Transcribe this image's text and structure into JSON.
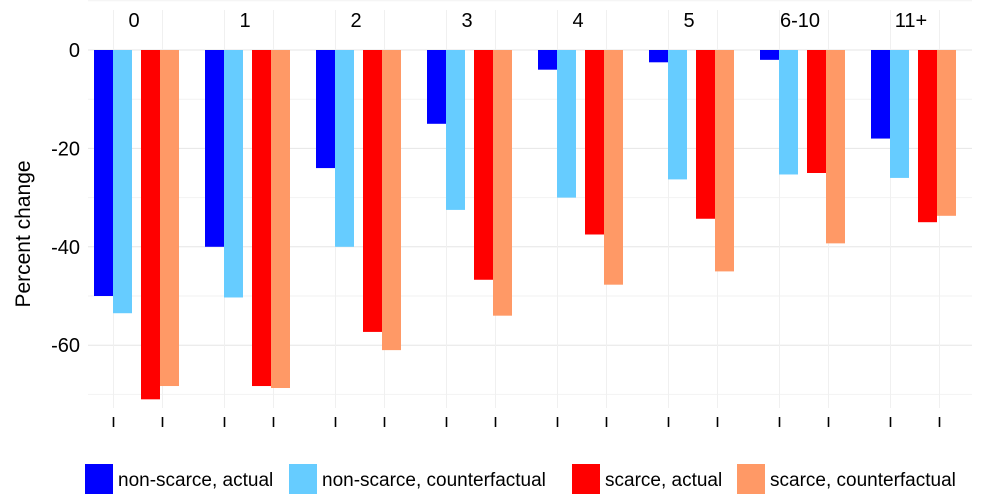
{
  "chart_data": {
    "type": "bar",
    "title": "",
    "xlabel": "",
    "ylabel": "Percent change",
    "ylim": [
      -70,
      0
    ],
    "yticks": [
      0,
      -20,
      -40,
      -60
    ],
    "grid": true,
    "legend_position": "bottom",
    "categories": [
      "0",
      "1",
      "2",
      "3",
      "4",
      "5",
      "6-10",
      "11+"
    ],
    "series": [
      {
        "name": "non-scarce, actual",
        "color": "#0000FF",
        "values": [
          -50,
          -40,
          -24,
          -15,
          -4,
          -2.5,
          -2,
          -18
        ]
      },
      {
        "name": "non-scarce, counterfactual",
        "color": "#66CCFF",
        "values": [
          -53.5,
          -50.3,
          -40,
          -32.5,
          -30,
          -26.3,
          -25.3,
          -26
        ]
      },
      {
        "name": "scarce, actual",
        "color": "#FF0000",
        "values": [
          -71,
          -68.3,
          -57.3,
          -46.7,
          -37.5,
          -34.3,
          -25,
          -35
        ]
      },
      {
        "name": "scarce, counterfactual",
        "color": "#FF9966",
        "values": [
          -68.3,
          -68.7,
          -61,
          -54,
          -47.7,
          -45,
          -39.3,
          -33.7
        ]
      }
    ]
  }
}
